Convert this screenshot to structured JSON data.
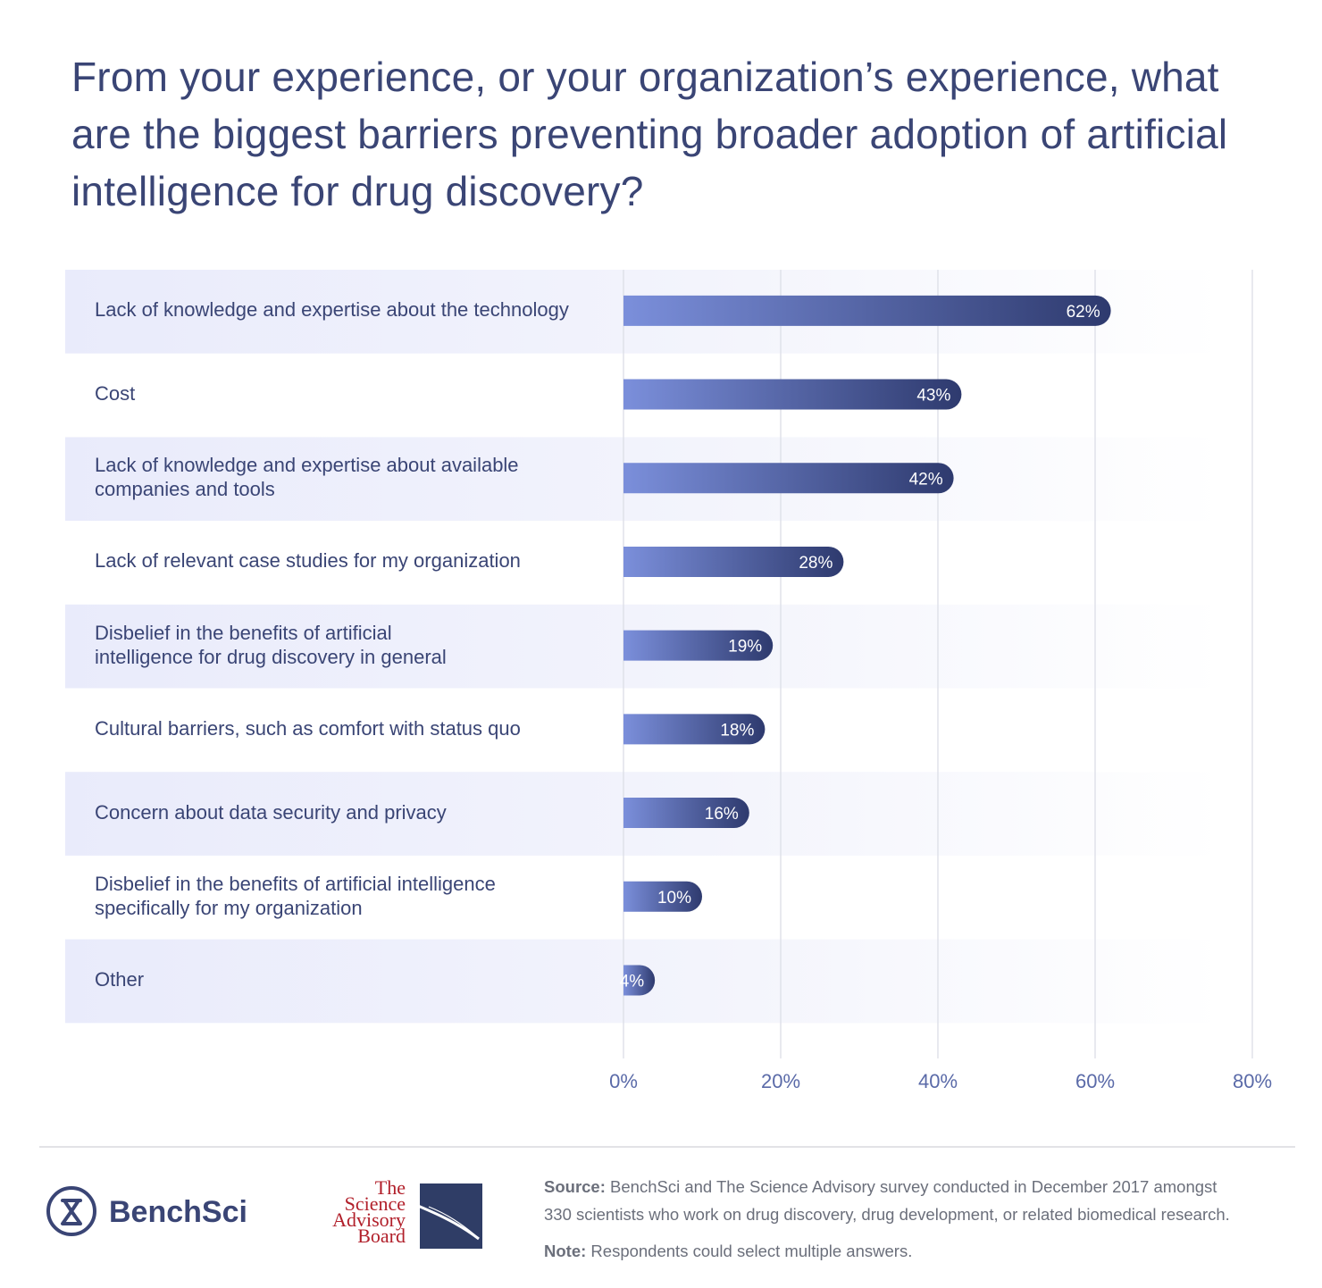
{
  "chart_data": {
    "type": "bar",
    "orientation": "horizontal",
    "title": "From your experience, or your organization’s experience, what are the biggest barriers preventing broader adoption of artificial intelligence for drug discovery?",
    "categories": [
      "Lack of knowledge and expertise about the technology",
      "Cost",
      "Lack of knowledge and expertise about available companies and tools",
      "Lack of relevant case studies for my organization",
      "Disbelief in the benefits of artificial intelligence for drug discovery in general",
      "Cultural barriers, such as comfort with status quo",
      "Concern about data security and privacy",
      "Disbelief in the benefits of artificial intelligence specifically for my organization",
      "Other"
    ],
    "category_lines": [
      [
        "Lack of knowledge and expertise about the technology"
      ],
      [
        "Cost"
      ],
      [
        "Lack of knowledge and expertise about available",
        "companies and tools"
      ],
      [
        "Lack of relevant case studies for my organization"
      ],
      [
        "Disbelief in the benefits of artificial",
        "intelligence for drug discovery in general"
      ],
      [
        "Cultural barriers, such as comfort with status quo"
      ],
      [
        "Concern about data security and privacy"
      ],
      [
        "Disbelief in the benefits of artificial intelligence",
        "specifically for my organization"
      ],
      [
        "Other"
      ]
    ],
    "values": [
      62,
      43,
      42,
      28,
      19,
      18,
      16,
      10,
      4
    ],
    "value_labels": [
      "62%",
      "43%",
      "42%",
      "28%",
      "19%",
      "18%",
      "16%",
      "10%",
      "4%"
    ],
    "xlim": [
      0,
      80
    ],
    "x_ticks": [
      "0%",
      "20%",
      "40%",
      "60%",
      "80%"
    ],
    "grid": true,
    "colors": {
      "bar_start": "#7b8fdb",
      "bar_end": "#2e3a6e",
      "row_band": "#eceefb",
      "grid": "#e0e2ea",
      "text": "#3a4575",
      "tick_text": "#5a6aa8"
    }
  },
  "footer": {
    "benchsci_name": "BenchSci",
    "sab_lines": [
      "The",
      "Science",
      "Advisory",
      "Board"
    ],
    "source_label": "Source:",
    "source_text": " BenchSci and The Science Advisory survey conducted in December 2017 amongst",
    "source_text_2": "330 scientists who work on drug discovery, drug development, or related biomedical research.",
    "note_label": "Note:",
    "note_text": " Respondents could select multiple answers."
  }
}
